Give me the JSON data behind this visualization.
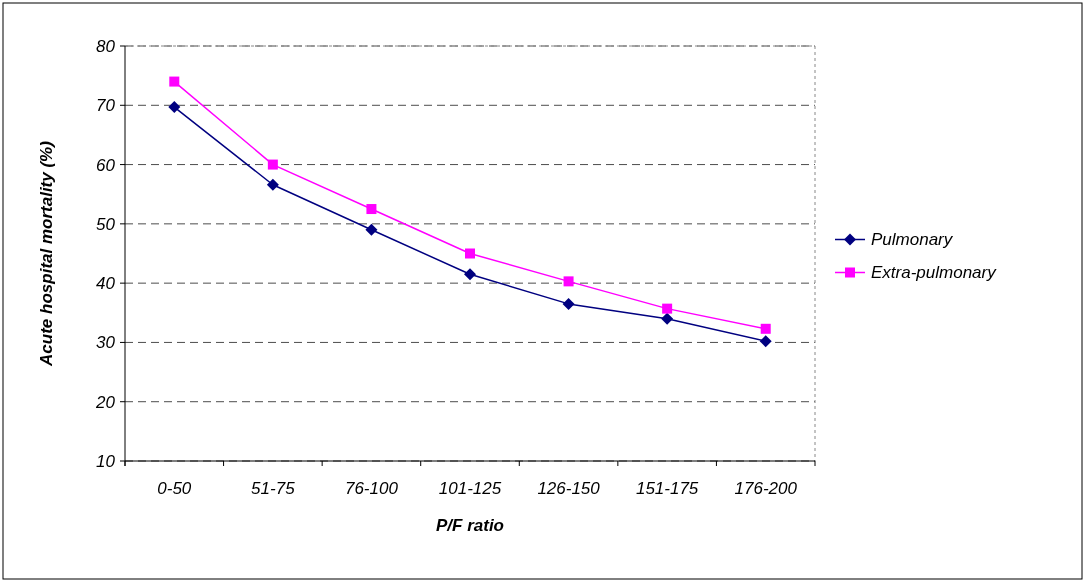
{
  "chart_data": {
    "type": "line",
    "xlabel": "P/F ratio",
    "ylabel": "Acute hospital mortality (%)",
    "categories": [
      "0-50",
      "51-75",
      "76-100",
      "101-125",
      "126-150",
      "151-175",
      "176-200"
    ],
    "series": [
      {
        "name": "Pulmonary",
        "color": "#000080",
        "marker": "diamond",
        "values": [
          69.7,
          56.6,
          49,
          41.5,
          36.5,
          34,
          30.2
        ]
      },
      {
        "name": "Extra-pulmonary",
        "color": "#ff00ff",
        "marker": "square",
        "values": [
          74,
          60,
          52.5,
          45,
          40.3,
          35.7,
          32.3
        ]
      }
    ],
    "ylim": [
      10,
      80
    ],
    "yticks": [
      10,
      20,
      30,
      40,
      50,
      60,
      70,
      80
    ],
    "grid": "y",
    "legend": "right"
  }
}
